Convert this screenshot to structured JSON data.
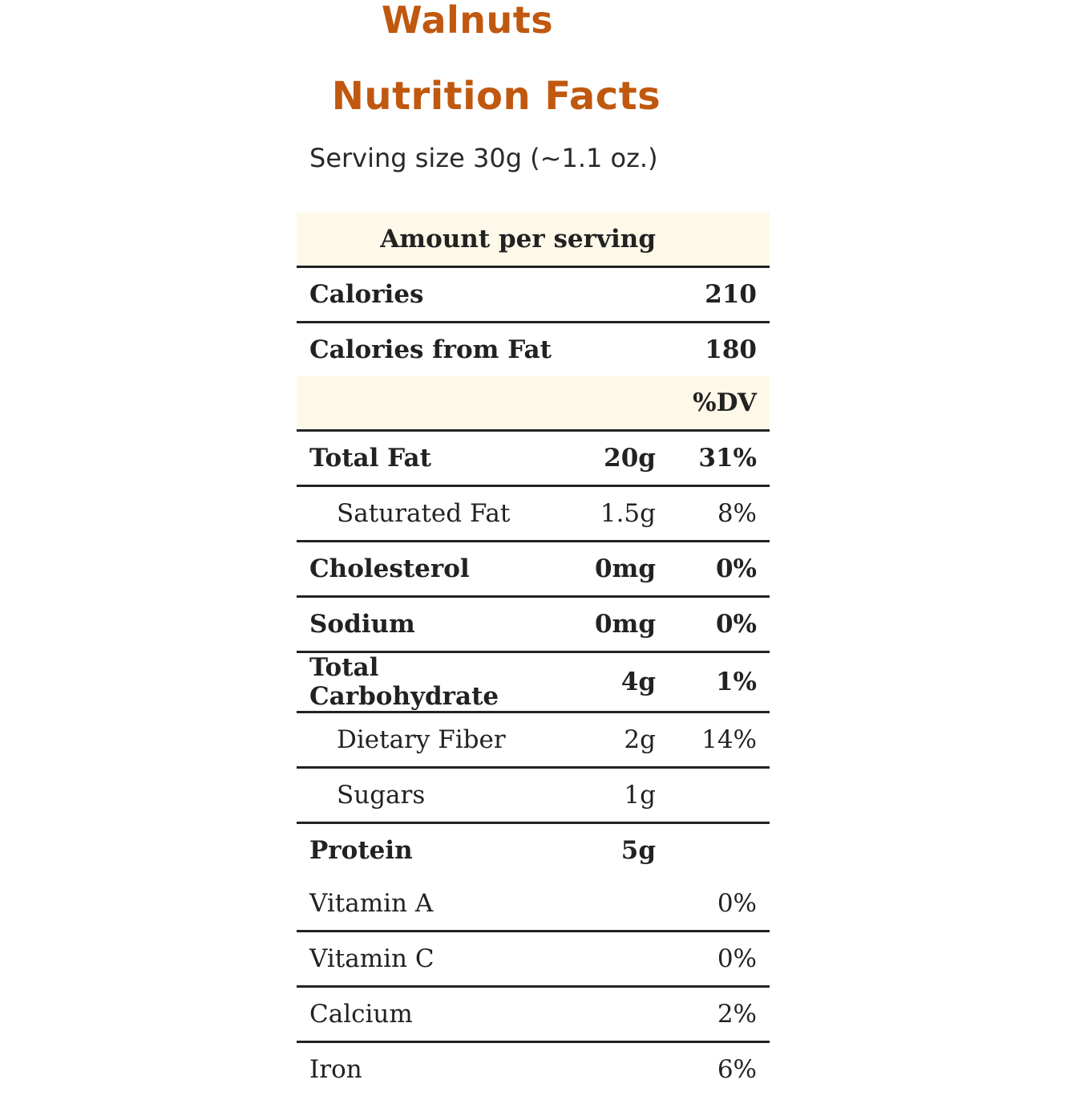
{
  "header": {
    "product": "Walnuts",
    "title": "Nutrition Facts",
    "serving": "Serving size 30g (~1.1 oz.)"
  },
  "table": {
    "amount_header": "Amount per serving",
    "calories_label": "Calories",
    "calories_value": "210",
    "cal_fat_label": "Calories from Fat",
    "cal_fat_value": "180",
    "dv_header": "%DV",
    "nutrients": [
      {
        "name": "Total Fat",
        "amount": "20g",
        "dv": "31%"
      },
      {
        "name": "Saturated Fat",
        "amount": "1.5g",
        "dv": "8%"
      },
      {
        "name": "Cholesterol",
        "amount": "0mg",
        "dv": "0%"
      },
      {
        "name": "Sodium",
        "amount": "0mg",
        "dv": "0%"
      },
      {
        "name": "Total Carbohydrate",
        "amount": "4g",
        "dv": "1%"
      },
      {
        "name": "Dietary Fiber",
        "amount": "2g",
        "dv": "14%"
      },
      {
        "name": "Sugars",
        "amount": "1g",
        "dv": ""
      },
      {
        "name": "Protein",
        "amount": "5g",
        "dv": ""
      }
    ],
    "vitamins": [
      {
        "name": "Vitamin A",
        "dv": "0%"
      },
      {
        "name": "Vitamin C",
        "dv": "0%"
      },
      {
        "name": "Calcium",
        "dv": "2%"
      },
      {
        "name": "Iron",
        "dv": "6%"
      }
    ]
  },
  "colors": {
    "title": "#c0580f",
    "header_band": "#fdf8e8",
    "rule": "#222222"
  }
}
